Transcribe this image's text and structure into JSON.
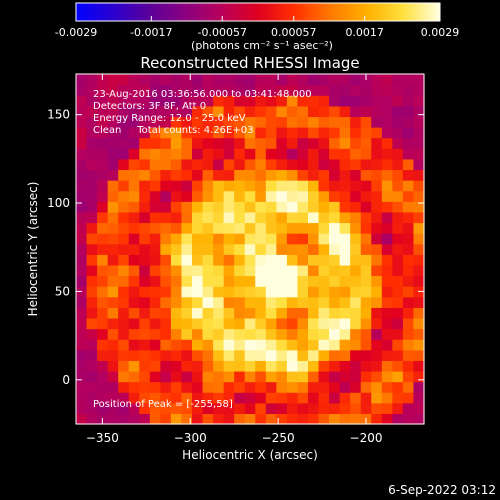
{
  "colorbar": {
    "ticks": [
      "-0.0029",
      "-0.0017",
      "-0.00057",
      "0.00057",
      "0.0017",
      "0.0029"
    ],
    "tick_values": [
      -0.0029,
      -0.0017,
      -0.00057,
      0.00057,
      0.0017,
      0.0029
    ],
    "range": [
      -0.0029,
      0.0029
    ],
    "units_label": "(photons cm⁻² s⁻¹ asec⁻²)",
    "colormap": [
      "#0000ff",
      "#2a00d0",
      "#5a009a",
      "#8a0080",
      "#b8005a",
      "#e00020",
      "#ff3000",
      "#ff7a00",
      "#ffb000",
      "#ffe040",
      "#ffffe0"
    ]
  },
  "chart_data": {
    "type": "heatmap",
    "title": "Reconstructed RHESSI Image",
    "xlabel": "Heliocentric X (arcsec)",
    "ylabel": "Heliocentric Y (arcsec)",
    "xlim": [
      -365,
      -167
    ],
    "ylim": [
      -25,
      173
    ],
    "x_ticks": [
      -350,
      -300,
      -250,
      -200
    ],
    "x_tick_labels": [
      "−350",
      "−300",
      "−250",
      "−200"
    ],
    "y_ticks": [
      0,
      50,
      100,
      150
    ],
    "y_tick_labels": [
      "0",
      "50",
      "100",
      "150"
    ],
    "peak": [
      -255,
      58
    ],
    "annotations": [
      "23-Aug-2016 03:36:56.000 to 03:41:48.000",
      "Detectors: 3F 8F, Att 0",
      "Energy Range: 12.0 - 25.0 keV",
      "Clean     Total counts: 4.26E+03"
    ],
    "peak_label": "Position of Peak = [-255,58]"
  },
  "footer": {
    "timestamp": "6-Sep-2022 03:12"
  }
}
